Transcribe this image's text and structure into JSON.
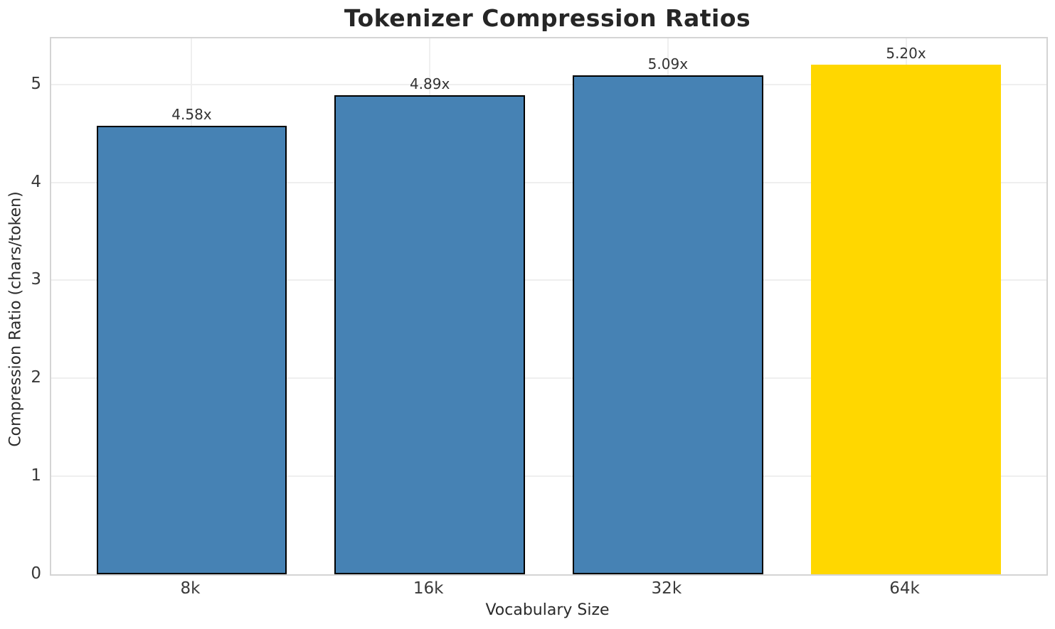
{
  "chart_data": {
    "type": "bar",
    "title": "Tokenizer Compression Ratios",
    "xlabel": "Vocabulary Size",
    "ylabel": "Compression Ratio (chars/token)",
    "categories": [
      "8k",
      "16k",
      "32k",
      "64k"
    ],
    "values": [
      4.58,
      4.89,
      5.09,
      5.2
    ],
    "bar_labels": [
      "4.58x",
      "4.89x",
      "5.09x",
      "5.20x"
    ],
    "yticks": [
      0,
      1,
      2,
      3,
      4,
      5
    ],
    "ytick_labels": [
      "0",
      "1",
      "2",
      "3",
      "4",
      "5"
    ],
    "ylim": [
      0,
      5.47
    ],
    "xlim": [
      -0.59,
      3.59
    ],
    "bar_width_frac": 0.8,
    "grid": true,
    "legend": "none",
    "highlight_index": 3,
    "colors": {
      "bar_default": "#4682B4",
      "bar_highlight": "#FFD700",
      "bar_edge": "#000000",
      "grid": "#efefef",
      "spine": "#d4d4d4",
      "title_text": "#262626",
      "tick_text": "#3a3a3a",
      "label_text": "#2b2b2b"
    }
  }
}
